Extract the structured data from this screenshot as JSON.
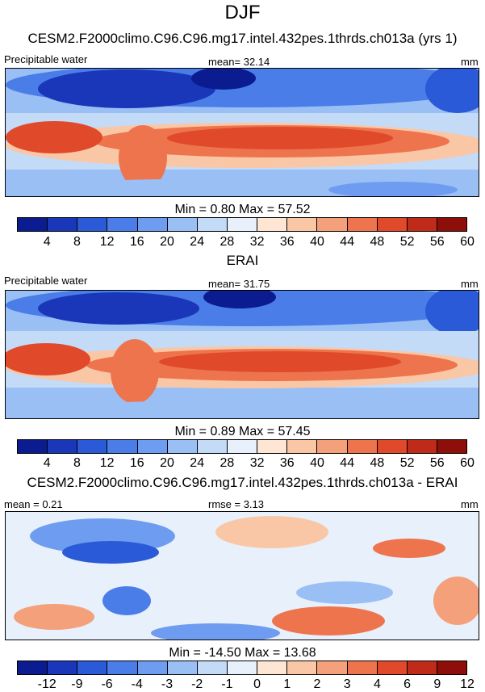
{
  "title": "DJF",
  "panel1": {
    "subtitle": "CESM2.F2000climo.C96.C96.mg17.intel.432pes.1thrds.ch013a (yrs 1)",
    "left_label": "Precipitable water",
    "center_label": "mean=  32.14",
    "right_label": "mm",
    "minmax": "Min =   0.80 Max =  57.52",
    "ticks": [
      "4",
      "8",
      "12",
      "16",
      "20",
      "24",
      "28",
      "32",
      "36",
      "40",
      "44",
      "48",
      "52",
      "56",
      "60"
    ]
  },
  "panel2": {
    "subtitle": "ERAI",
    "left_label": "Precipitable water",
    "center_label": "mean=  31.75",
    "right_label": "mm",
    "minmax": "Min =   0.89 Max =  57.45",
    "ticks": [
      "4",
      "8",
      "12",
      "16",
      "20",
      "24",
      "28",
      "32",
      "36",
      "40",
      "44",
      "48",
      "52",
      "56",
      "60"
    ]
  },
  "panel3": {
    "subtitle": "CESM2.F2000climo.C96.C96.mg17.intel.432pes.1thrds.ch013a - ERAI",
    "left_label": "mean =   0.21",
    "center_label": "rmse =   3.13",
    "right_label": "mm",
    "minmax": "Min = -14.50 Max =  13.68",
    "ticks": [
      "-12",
      "-9",
      "-6",
      "-4",
      "-3",
      "-2",
      "-1",
      "0",
      "1",
      "2",
      "3",
      "4",
      "6",
      "9",
      "12"
    ]
  },
  "colors": {
    "palette": [
      "#0a1c8f",
      "#1937b8",
      "#2a5ad8",
      "#4a7de8",
      "#6e9cf0",
      "#9abff5",
      "#c4dbf8",
      "#e7f0fb",
      "#fde6d3",
      "#f9c7a6",
      "#f4a07a",
      "#ee744e",
      "#e0492a",
      "#c02a18",
      "#8e0f0a"
    ]
  }
}
